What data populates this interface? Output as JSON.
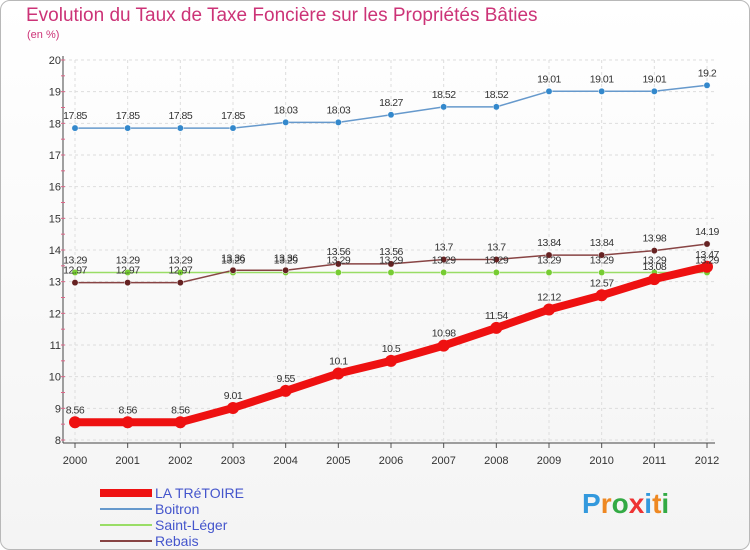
{
  "chart_data": {
    "type": "line",
    "title": "Evolution du Taux de Taxe Foncière sur les Propriétés Bâties",
    "ylabel": "(en %)",
    "xlabel": "",
    "ylim": [
      8,
      20
    ],
    "yticks": [
      "8",
      "9",
      "10",
      "11",
      "12",
      "13",
      "14",
      "15",
      "16",
      "17",
      "18",
      "19",
      "20"
    ],
    "x": [
      "2000",
      "2001",
      "2002",
      "2003",
      "2004",
      "2005",
      "2006",
      "2007",
      "2008",
      "2009",
      "2010",
      "2011",
      "2012"
    ],
    "series": [
      {
        "name": "Boitron",
        "color": "#6699cc",
        "marker": "#3388cc",
        "values": [
          17.85,
          17.85,
          17.85,
          17.85,
          18.03,
          18.03,
          18.27,
          18.52,
          18.52,
          19.01,
          19.01,
          19.01,
          19.2
        ],
        "labels": [
          "17.85",
          "17.85",
          "17.85",
          "17.85",
          "18.03",
          "18.03",
          "18.27",
          "18.52",
          "18.52",
          "19.01",
          "19.01",
          "19.01",
          "19.2"
        ]
      },
      {
        "name": "Saint-Léger",
        "color": "#99dd66",
        "marker": "#77cc33",
        "values": [
          13.29,
          13.29,
          13.29,
          13.29,
          13.29,
          13.29,
          13.29,
          13.29,
          13.29,
          13.29,
          13.29,
          13.29,
          13.29
        ],
        "labels": [
          "13.29",
          "13.29",
          "13.29",
          "13.29",
          "13.29",
          "13.29",
          "13.29",
          "13.29",
          "13.29",
          "13.29",
          "13.29",
          "13.29",
          "13.29"
        ]
      },
      {
        "name": "Rebais",
        "color": "#884444",
        "marker": "#662222",
        "values": [
          12.97,
          12.97,
          12.97,
          13.36,
          13.36,
          13.56,
          13.56,
          13.7,
          13.7,
          13.84,
          13.84,
          13.98,
          14.19
        ],
        "labels": [
          "12.97",
          "12.97",
          "12.97",
          "13.36",
          "13.36",
          "13.56",
          "13.56",
          "13.7",
          "13.7",
          "13.84",
          "13.84",
          "13.98",
          "14.19"
        ]
      },
      {
        "name": "LA TRéTOIRE",
        "color": "#ee1111",
        "marker": "#ee1111",
        "values": [
          8.56,
          8.56,
          8.56,
          9.01,
          9.55,
          10.1,
          10.5,
          10.98,
          11.54,
          12.12,
          12.57,
          13.08,
          13.47
        ],
        "labels": [
          "8.56",
          "8.56",
          "8.56",
          "9.01",
          "9.55",
          "10.1",
          "10.5",
          "10.98",
          "11.54",
          "12.12",
          "12.57",
          "13.08",
          "13.47"
        ]
      }
    ],
    "legend": [
      "LA TRéTOIRE",
      "Boitron",
      "Saint-Léger",
      "Rebais"
    ],
    "legend_placement": "bottom-left"
  },
  "logo_text": "Proxiti"
}
